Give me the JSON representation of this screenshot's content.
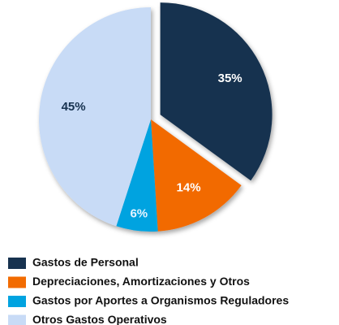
{
  "chart_data": {
    "type": "pie",
    "categories": [
      "Gastos de Personal",
      "Depreciaciones, Amortizaciones y Otros",
      "Gastos por Aportes a Organismos Reguladores",
      "Otros Gastos Operativos"
    ],
    "values": [
      35,
      14,
      6,
      45
    ],
    "value_labels": [
      "35%",
      "14%",
      "6%",
      "45%"
    ],
    "colors": [
      "#17324f",
      "#f26b00",
      "#00a3e0",
      "#c8dbf6"
    ],
    "label_colors": [
      "#ffffff",
      "#ffffff",
      "#e8f4ff",
      "#17324f"
    ],
    "exploded": [
      true,
      false,
      false,
      false
    ]
  }
}
